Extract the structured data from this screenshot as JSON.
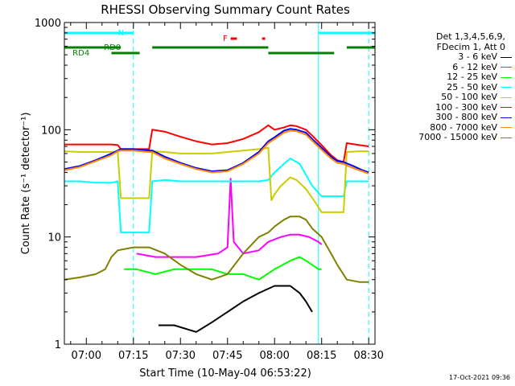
{
  "chart_data": {
    "type": "line",
    "title": "RHESSI Observing Summary Count Rates",
    "xlabel": "Start Time (10-May-04 06:53:22)",
    "ylabel": "Count Rate (s⁻¹ detector⁻¹)",
    "yscale": "log",
    "ylim": [
      1,
      1000
    ],
    "xlim": [
      "06:53",
      "08:32"
    ],
    "y_ticks": [
      "1",
      "10",
      "100",
      "1000"
    ],
    "x_ticks": [
      "07:00",
      "07:15",
      "07:30",
      "07:45",
      "08:00",
      "08:15",
      "08:30"
    ],
    "grid": false,
    "legend_position": "right",
    "legend_header": [
      "Det 1,3,4,5,6,9,",
      "FDecim 1, Att 0"
    ],
    "series": [
      {
        "name": "3 - 6 keV",
        "color": "#000000",
        "points": [
          [
            "07:23",
            1.5
          ],
          [
            "07:28",
            1.5
          ],
          [
            "07:35",
            1.3
          ],
          [
            "07:40",
            1.6
          ],
          [
            "07:45",
            2
          ],
          [
            "07:50",
            2.5
          ],
          [
            "07:55",
            3
          ],
          [
            "08:00",
            3.5
          ],
          [
            "08:05",
            3.5
          ],
          [
            "08:08",
            3
          ],
          [
            "08:10",
            2.5
          ],
          [
            "08:12",
            2
          ]
        ]
      },
      {
        "name": "6 - 12 keV",
        "color": "#ff00ff",
        "points": [
          [
            "07:16",
            7
          ],
          [
            "07:22",
            6.5
          ],
          [
            "07:28",
            6.5
          ],
          [
            "07:35",
            6.5
          ],
          [
            "07:42",
            7
          ],
          [
            "07:45",
            8
          ],
          [
            "07:46",
            35
          ],
          [
            "07:47",
            9
          ],
          [
            "07:50",
            7
          ],
          [
            "07:55",
            7.5
          ],
          [
            "07:58",
            9
          ],
          [
            "08:02",
            10
          ],
          [
            "08:05",
            10.5
          ],
          [
            "08:08",
            10.5
          ],
          [
            "08:11",
            10
          ],
          [
            "08:14",
            9
          ],
          [
            "08:15",
            8.5
          ]
        ]
      },
      {
        "name": "12 - 25 keV",
        "color": "#00ff00",
        "points": [
          [
            "07:12",
            5
          ],
          [
            "07:16",
            5
          ],
          [
            "07:22",
            4.5
          ],
          [
            "07:28",
            5
          ],
          [
            "07:35",
            5
          ],
          [
            "07:40",
            5
          ],
          [
            "07:45",
            4.5
          ],
          [
            "07:50",
            4.5
          ],
          [
            "07:55",
            4
          ],
          [
            "08:00",
            5
          ],
          [
            "08:05",
            6
          ],
          [
            "08:08",
            6.5
          ],
          [
            "08:10",
            6
          ],
          [
            "08:12",
            5.5
          ],
          [
            "08:14",
            5
          ],
          [
            "08:15",
            5
          ]
        ]
      },
      {
        "name": "25 - 50 keV",
        "color": "#00ffff",
        "points": [
          [
            "06:53",
            33
          ],
          [
            "06:58",
            33
          ],
          [
            "07:03",
            32
          ],
          [
            "07:08",
            32
          ],
          [
            "07:10",
            33
          ],
          [
            "07:11",
            11
          ],
          [
            "07:15",
            11
          ],
          [
            "07:20",
            11
          ],
          [
            "07:21",
            33
          ],
          [
            "07:25",
            34
          ],
          [
            "07:30",
            33
          ],
          [
            "07:35",
            33
          ],
          [
            "07:40",
            33
          ],
          [
            "07:45",
            33
          ],
          [
            "07:50",
            33
          ],
          [
            "07:55",
            33
          ],
          [
            "07:58",
            34
          ],
          [
            "08:00",
            40
          ],
          [
            "08:03",
            48
          ],
          [
            "08:05",
            54
          ],
          [
            "08:08",
            48
          ],
          [
            "08:10",
            38
          ],
          [
            "08:12",
            30
          ],
          [
            "08:15",
            24
          ],
          [
            "08:16",
            24
          ],
          [
            "08:20",
            24
          ],
          [
            "08:22",
            24
          ],
          [
            "08:23",
            33
          ],
          [
            "08:27",
            33
          ],
          [
            "08:30",
            33
          ]
        ]
      },
      {
        "name": "50 - 100 keV",
        "color": "#cccc00",
        "points": [
          [
            "06:53",
            63
          ],
          [
            "06:58",
            62
          ],
          [
            "07:03",
            62
          ],
          [
            "07:08",
            62
          ],
          [
            "07:10",
            62
          ],
          [
            "07:11",
            23
          ],
          [
            "07:15",
            23
          ],
          [
            "07:20",
            23
          ],
          [
            "07:21",
            63
          ],
          [
            "07:25",
            62
          ],
          [
            "07:30",
            60
          ],
          [
            "07:35",
            60
          ],
          [
            "07:40",
            60
          ],
          [
            "07:45",
            62
          ],
          [
            "07:50",
            64
          ],
          [
            "07:55",
            66
          ],
          [
            "07:58",
            68
          ],
          [
            "07:59",
            22
          ],
          [
            "08:00",
            25
          ],
          [
            "08:02",
            30
          ],
          [
            "08:05",
            36
          ],
          [
            "08:07",
            34
          ],
          [
            "08:10",
            28
          ],
          [
            "08:13",
            21
          ],
          [
            "08:15",
            17
          ],
          [
            "08:16",
            17
          ],
          [
            "08:20",
            17
          ],
          [
            "08:22",
            17
          ],
          [
            "08:23",
            62
          ],
          [
            "08:27",
            63
          ],
          [
            "08:30",
            63
          ]
        ]
      },
      {
        "name": "100 - 300 keV",
        "color": "#ff0000",
        "points": [
          [
            "06:53",
            73
          ],
          [
            "06:58",
            73
          ],
          [
            "07:03",
            73
          ],
          [
            "07:08",
            73
          ],
          [
            "07:10",
            72
          ],
          [
            "07:11",
            66
          ],
          [
            "07:15",
            66
          ],
          [
            "07:20",
            66
          ],
          [
            "07:21",
            100
          ],
          [
            "07:25",
            96
          ],
          [
            "07:30",
            86
          ],
          [
            "07:35",
            78
          ],
          [
            "07:40",
            73
          ],
          [
            "07:45",
            75
          ],
          [
            "07:50",
            82
          ],
          [
            "07:55",
            95
          ],
          [
            "07:58",
            110
          ],
          [
            "08:00",
            100
          ],
          [
            "08:03",
            105
          ],
          [
            "08:05",
            110
          ],
          [
            "08:07",
            108
          ],
          [
            "08:10",
            100
          ],
          [
            "08:12",
            88
          ],
          [
            "08:15",
            72
          ],
          [
            "08:18",
            58
          ],
          [
            "08:20",
            52
          ],
          [
            "08:22",
            50
          ],
          [
            "08:23",
            75
          ],
          [
            "08:27",
            72
          ],
          [
            "08:30",
            70
          ]
        ]
      },
      {
        "name": "300 - 800 keV",
        "color": "#0000ff",
        "points": [
          [
            "06:53",
            43
          ],
          [
            "06:58",
            46
          ],
          [
            "07:03",
            52
          ],
          [
            "07:08",
            60
          ],
          [
            "07:10",
            64
          ],
          [
            "07:11",
            66
          ],
          [
            "07:15",
            66
          ],
          [
            "07:20",
            64
          ],
          [
            "07:21",
            64
          ],
          [
            "07:25",
            56
          ],
          [
            "07:30",
            49
          ],
          [
            "07:35",
            44
          ],
          [
            "07:40",
            41
          ],
          [
            "07:45",
            42
          ],
          [
            "07:50",
            49
          ],
          [
            "07:55",
            62
          ],
          [
            "07:58",
            78
          ],
          [
            "08:00",
            85
          ],
          [
            "08:03",
            98
          ],
          [
            "08:05",
            102
          ],
          [
            "08:07",
            100
          ],
          [
            "08:10",
            94
          ],
          [
            "08:12",
            82
          ],
          [
            "08:15",
            68
          ],
          [
            "08:18",
            56
          ],
          [
            "08:20",
            51
          ],
          [
            "08:22",
            50
          ],
          [
            "08:25",
            46
          ],
          [
            "08:28",
            42
          ],
          [
            "08:30",
            40
          ]
        ]
      },
      {
        "name": "800 - 7000 keV",
        "color": "#ff8800",
        "points": [
          [
            "06:53",
            42
          ],
          [
            "06:58",
            45
          ],
          [
            "07:03",
            51
          ],
          [
            "07:08",
            58
          ],
          [
            "07:10",
            63
          ],
          [
            "07:11",
            64
          ],
          [
            "07:15",
            64
          ],
          [
            "07:20",
            62
          ],
          [
            "07:21",
            62
          ],
          [
            "07:25",
            54
          ],
          [
            "07:30",
            48
          ],
          [
            "07:35",
            43
          ],
          [
            "07:40",
            40
          ],
          [
            "07:45",
            41
          ],
          [
            "07:50",
            48
          ],
          [
            "07:55",
            60
          ],
          [
            "07:58",
            75
          ],
          [
            "08:00",
            82
          ],
          [
            "08:03",
            94
          ],
          [
            "08:05",
            98
          ],
          [
            "08:07",
            97
          ],
          [
            "08:10",
            90
          ],
          [
            "08:12",
            79
          ],
          [
            "08:15",
            65
          ],
          [
            "08:18",
            54
          ],
          [
            "08:20",
            49
          ],
          [
            "08:22",
            48
          ],
          [
            "08:25",
            44
          ],
          [
            "08:28",
            41
          ],
          [
            "08:30",
            39
          ]
        ]
      },
      {
        "name": "7000 - 15000 keV",
        "color": "#808000",
        "points": [
          [
            "06:53",
            4
          ],
          [
            "06:58",
            4.2
          ],
          [
            "07:03",
            4.5
          ],
          [
            "07:06",
            5
          ],
          [
            "07:08",
            6.5
          ],
          [
            "07:10",
            7.5
          ],
          [
            "07:15",
            8
          ],
          [
            "07:20",
            8
          ],
          [
            "07:25",
            7
          ],
          [
            "07:30",
            5.5
          ],
          [
            "07:35",
            4.5
          ],
          [
            "07:40",
            4
          ],
          [
            "07:45",
            4.5
          ],
          [
            "07:50",
            7
          ],
          [
            "07:55",
            10
          ],
          [
            "07:58",
            11
          ],
          [
            "08:00",
            12.5
          ],
          [
            "08:03",
            14.5
          ],
          [
            "08:05",
            15.5
          ],
          [
            "08:08",
            15.5
          ],
          [
            "08:10",
            14.5
          ],
          [
            "08:12",
            12
          ],
          [
            "08:15",
            10
          ],
          [
            "08:18",
            7
          ],
          [
            "08:20",
            5.5
          ],
          [
            "08:23",
            4
          ],
          [
            "08:27",
            3.8
          ],
          [
            "08:30",
            3.8
          ]
        ]
      }
    ],
    "markers": {
      "N": {
        "label": "N",
        "color": "#00ffff",
        "segments": [
          [
            "06:53",
            "07:15"
          ],
          [
            "08:14",
            "08:32"
          ]
        ]
      },
      "F": {
        "label": "F",
        "color": "#ff0000",
        "segments": [
          [
            "07:46",
            "07:48"
          ],
          [
            "07:56",
            "07:57"
          ]
        ]
      },
      "RD0": {
        "label": "RD0",
        "color": "#008000",
        "segments": [
          [
            "06:53",
            "07:11"
          ],
          [
            "07:21",
            "07:58"
          ],
          [
            "08:23",
            "08:32"
          ]
        ]
      },
      "RD4": {
        "label": "RD4",
        "color": "#008000",
        "segments": [
          [
            "07:08",
            "07:17"
          ],
          [
            "07:58",
            "08:19"
          ]
        ]
      },
      "vlines_solid": [
        "06:53",
        "08:14"
      ],
      "vlines_dashed": [
        "07:15",
        "08:30"
      ]
    }
  },
  "timestamp": "17-Oct-2021 09:36"
}
